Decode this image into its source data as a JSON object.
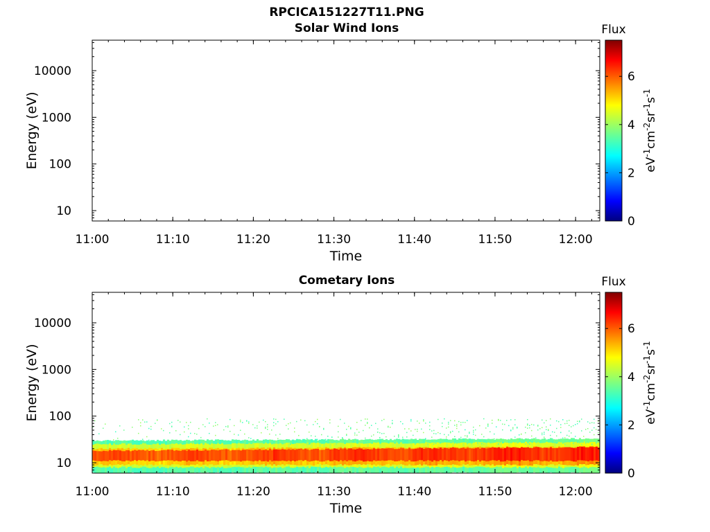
{
  "figure_title": "RPCICA151227T11.PNG",
  "chart_data": [
    {
      "type": "heatmap",
      "title": "Solar Wind Ions",
      "xlabel": "Time",
      "ylabel": "Energy (eV)",
      "x_ticks": [
        "11:00",
        "11:10",
        "11:20",
        "11:30",
        "11:40",
        "11:50",
        "12:00"
      ],
      "xlim": [
        "11:00",
        "12:03"
      ],
      "y_scale": "log",
      "y_ticks": [
        10,
        100,
        1000,
        10000
      ],
      "y_tick_labels": [
        "10",
        "100",
        "1000",
        "10000"
      ],
      "ylim": [
        6,
        45000
      ],
      "colorbar": {
        "title": "Flux",
        "label": "eV-1cm-2sr-1s-1",
        "range": [
          0,
          7.5
        ],
        "ticks": [
          0,
          2,
          4,
          6
        ],
        "tick_labels": [
          "0",
          "2",
          "4",
          "6"
        ],
        "colormap": "jet"
      },
      "data_description": "empty",
      "bands": []
    },
    {
      "type": "heatmap",
      "title": "Cometary Ions",
      "xlabel": "Time",
      "ylabel": "Energy (eV)",
      "x_ticks": [
        "11:00",
        "11:10",
        "11:20",
        "11:30",
        "11:40",
        "11:50",
        "12:00"
      ],
      "xlim": [
        "11:00",
        "12:03"
      ],
      "y_scale": "log",
      "y_ticks": [
        10,
        100,
        1000,
        10000
      ],
      "y_tick_labels": [
        "10",
        "100",
        "1000",
        "10000"
      ],
      "ylim": [
        6,
        45000
      ],
      "colorbar": {
        "title": "Flux",
        "label": "eV-1cm-2sr-1s-1",
        "range": [
          0,
          7.5
        ],
        "ticks": [
          0,
          2,
          4,
          6
        ],
        "tick_labels": [
          "0",
          "2",
          "4",
          "6"
        ],
        "colormap": "jet"
      },
      "bands": [
        {
          "energy_range_eV": [
            6,
            30
          ],
          "flux": 3.4
        },
        {
          "energy_range_eV": [
            8,
            25
          ],
          "flux": 4.3
        },
        {
          "energy_range_eV": [
            9,
            20
          ],
          "flux": 5.0
        },
        {
          "energy_range_eV": [
            11,
            18
          ],
          "flux": 5.9
        }
      ],
      "sparse_range_eV": [
        25,
        90
      ],
      "sparse_flux": 3.2
    }
  ]
}
